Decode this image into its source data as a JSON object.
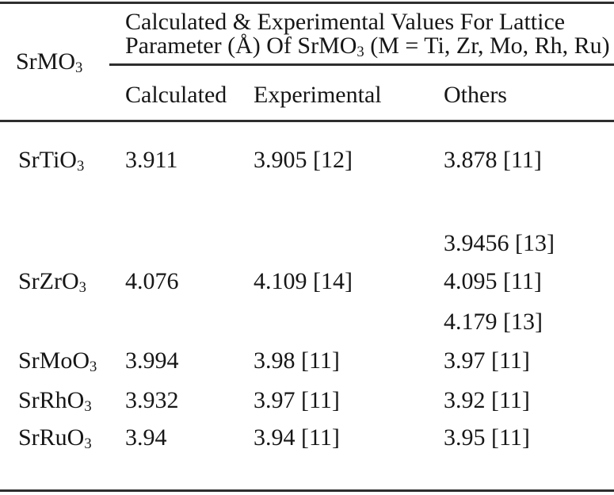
{
  "table": {
    "corner_header": {
      "base": "SrMO",
      "sub": "3"
    },
    "span_header": {
      "line1": "Calculated & Experimental Values For Lattice",
      "line2_pre": "Parameter (Å) Of SrMO",
      "line2_sub": "3",
      "line2_post": " (M = Ti, Zr, Mo, Rh, Ru)"
    },
    "columns": [
      "Calculated",
      "Experimental",
      "Others"
    ],
    "rows": [
      {
        "compound_base": "SrTiO",
        "compound_sub": "3",
        "calculated": "3.911",
        "experimental": "3.905 [12]",
        "others": "3.878 [11]"
      },
      {
        "compound_base": "",
        "compound_sub": "",
        "calculated": "",
        "experimental": "",
        "others": "3.9456 [13]"
      },
      {
        "compound_base": "SrZrO",
        "compound_sub": "3",
        "calculated": "4.076",
        "experimental": "4.109 [14]",
        "others": "4.095 [11]"
      },
      {
        "compound_base": "",
        "compound_sub": "",
        "calculated": "",
        "experimental": "",
        "others": "4.179 [13]"
      },
      {
        "compound_base": "SrMoO",
        "compound_sub": "3",
        "calculated": "3.994",
        "experimental": "3.98 [11]",
        "others": "3.97 [11]"
      },
      {
        "compound_base": "SrRhO",
        "compound_sub": "3",
        "calculated": "3.932",
        "experimental": "3.97 [11]",
        "others": "3.92 [11]"
      },
      {
        "compound_base": "SrRuO",
        "compound_sub": "3",
        "calculated": "3.94",
        "experimental": "3.94 [11]",
        "others": "3.95 [11]"
      }
    ],
    "colors": {
      "rule": "#2e2e2e",
      "text": "#161616",
      "background": "#ffffff"
    }
  }
}
